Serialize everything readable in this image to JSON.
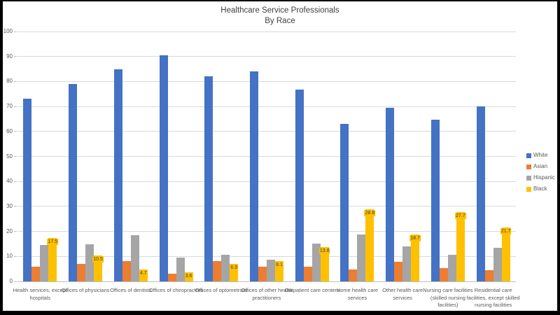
{
  "frame": {
    "border_color": "#000000",
    "background": "#ffffff"
  },
  "text_color": "#595959",
  "title_color": "#404040",
  "gridline_color": "#d9d9d9",
  "chart_data": {
    "type": "bar",
    "title": "Healthcare Service Professionals",
    "subtitle": "By Race",
    "xlabel": "",
    "ylabel": "",
    "ylim": [
      0,
      100
    ],
    "ytick_interval": 10,
    "yticks": [
      "0",
      "10",
      "20",
      "30",
      "40",
      "50",
      "60",
      "70",
      "80",
      "90",
      "100"
    ],
    "grid": true,
    "legend_position": "right",
    "categories": [
      "Health services, except hospitals",
      "Offices of physicians",
      "Offices of dentists",
      "Offices of chiropractors",
      "Offices of optometrists",
      "Offices of other health practitioners",
      "Outpatient care centers",
      "Home health care services",
      "Other health care services",
      "Nursing care facilities (skilled nursing facilities)",
      "Residential care facilities, except skilled nursing facilities"
    ],
    "series": [
      {
        "name": "White",
        "color": "#4472C4",
        "values": [
          73.0,
          79.0,
          85.0,
          90.5,
          82.0,
          84.0,
          76.8,
          63.0,
          69.5,
          64.6,
          70.0
        ]
      },
      {
        "name": "Asian",
        "color": "#ED7D31",
        "values": [
          6.0,
          7.1,
          8.2,
          3.2,
          8.2,
          6.0,
          6.0,
          4.8,
          7.8,
          5.2,
          4.4
        ]
      },
      {
        "name": "Hispanic",
        "color": "#A5A5A5",
        "values": [
          14.6,
          14.9,
          18.4,
          9.6,
          10.7,
          8.8,
          15.1,
          18.8,
          13.9,
          10.6,
          13.4
        ]
      },
      {
        "name": "Black",
        "color": "#FFC000",
        "values": [
          17.5,
          10.5,
          4.7,
          3.6,
          6.9,
          8.1,
          13.8,
          28.8,
          18.7,
          27.7,
          21.7
        ],
        "data_labels": [
          "17.5",
          "10.5",
          "4.7",
          "3.6",
          "6.9",
          "8.1",
          "13.8",
          "28.8",
          "18.7",
          "27.7",
          "21.7"
        ]
      }
    ]
  }
}
